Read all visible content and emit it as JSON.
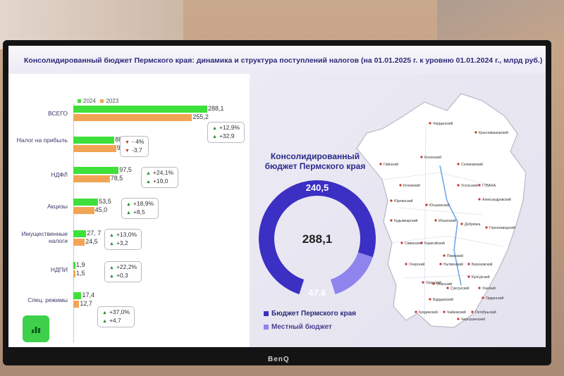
{
  "title": "Консолидированный бюджет Пермского края: динамика и структура поступлений налогов  (на 01.01.2025 г. к уровню  01.01.2024 г., млрд руб.)",
  "legend": {
    "series1": "2024",
    "series2": "2023",
    "color1": "#3ee03a",
    "color2": "#f2a455"
  },
  "categories": [
    {
      "label": "ВСЕГО",
      "v2024": "288,1",
      "v2023": "255,2",
      "pct": "+12,9%",
      "abs": "+32,9",
      "pct_dir": "up",
      "abs_dir": "up"
    },
    {
      "label": "Налог на прибыль",
      "v2024": "88,3",
      "v2023": "92,0",
      "pct": "- 4%",
      "abs": "-3,7",
      "pct_dir": "down",
      "abs_dir": "down"
    },
    {
      "label": "НДФЛ",
      "v2024": "97,5",
      "v2023": "78,5",
      "pct": "+24,1%",
      "abs": "+19,0",
      "pct_dir": "up",
      "abs_dir": "up"
    },
    {
      "label": "Акцизы",
      "v2024": "53,5",
      "v2023": "45,0",
      "pct": "+18,9%",
      "abs": "+8,5",
      "pct_dir": "up",
      "abs_dir": "up"
    },
    {
      "label": "Имущественные налоги",
      "v2024": "27, 7",
      "v2023": "24,5",
      "pct": "+13,0%",
      "abs": "+3,2",
      "pct_dir": "up",
      "abs_dir": "up"
    },
    {
      "label": "НДПИ",
      "v2024": "1,9",
      "v2023": "1,5",
      "pct": "+22,2%",
      "abs": "+0,3",
      "pct_dir": "up",
      "abs_dir": "up"
    },
    {
      "label": "Спец. режимы",
      "v2024": "17,4",
      "v2023": "12,7",
      "pct": "+37,0%",
      "abs": "+4,7",
      "pct_dir": "up",
      "abs_dir": "up"
    }
  ],
  "chart_data": {
    "type": "bar",
    "categories": [
      "ВСЕГО",
      "Налог на прибыль",
      "НДФЛ",
      "Акцизы",
      "Имущественные налоги",
      "НДПИ",
      "Спец. режимы"
    ],
    "series": [
      {
        "name": "2024",
        "values": [
          288.1,
          88.3,
          97.5,
          53.5,
          27.7,
          1.9,
          17.4
        ]
      },
      {
        "name": "2023",
        "values": [
          255.2,
          92.0,
          78.5,
          45.0,
          24.5,
          1.5,
          12.7
        ]
      }
    ],
    "orientation": "horizontal",
    "xlim": [
      0,
      288.1
    ]
  },
  "donut": {
    "title": "Консолидированный бюджет Пермского края",
    "total": "288,1",
    "regional": "240,5",
    "local": "47,6",
    "regional_value": 240.5,
    "local_value": 47.6,
    "regional_color": "#3b2fc4",
    "local_color": "#8f84ee",
    "legend_regional": "Бюджет Пермского края",
    "legend_local": "Местный бюджет"
  },
  "map": {
    "labels": [
      "Гайнский",
      "Чердынский",
      "Красновишерский",
      "Косинский",
      "Кочевский",
      "Юрлинский",
      "Кудымкарский",
      "Юсьвинский",
      "Ильинский",
      "Сивинский",
      "Карагайский",
      "Очерский",
      "Оханский",
      "Пермский",
      "Нытвенский",
      "Чайковский",
      "Куединский",
      "Октябрьский",
      "Суксунский",
      "Кунгурский",
      "Горнозаводский",
      "ГУБАХА",
      "Александровский",
      "Добрянка",
      "Осинский",
      "Бардымский",
      "Уинский",
      "Чернушинский",
      "Ординский",
      "Березовский",
      "Усольский",
      "Соликамский"
    ]
  },
  "brand": "BenQ",
  "icons": {
    "app_button": "chart-icon"
  }
}
